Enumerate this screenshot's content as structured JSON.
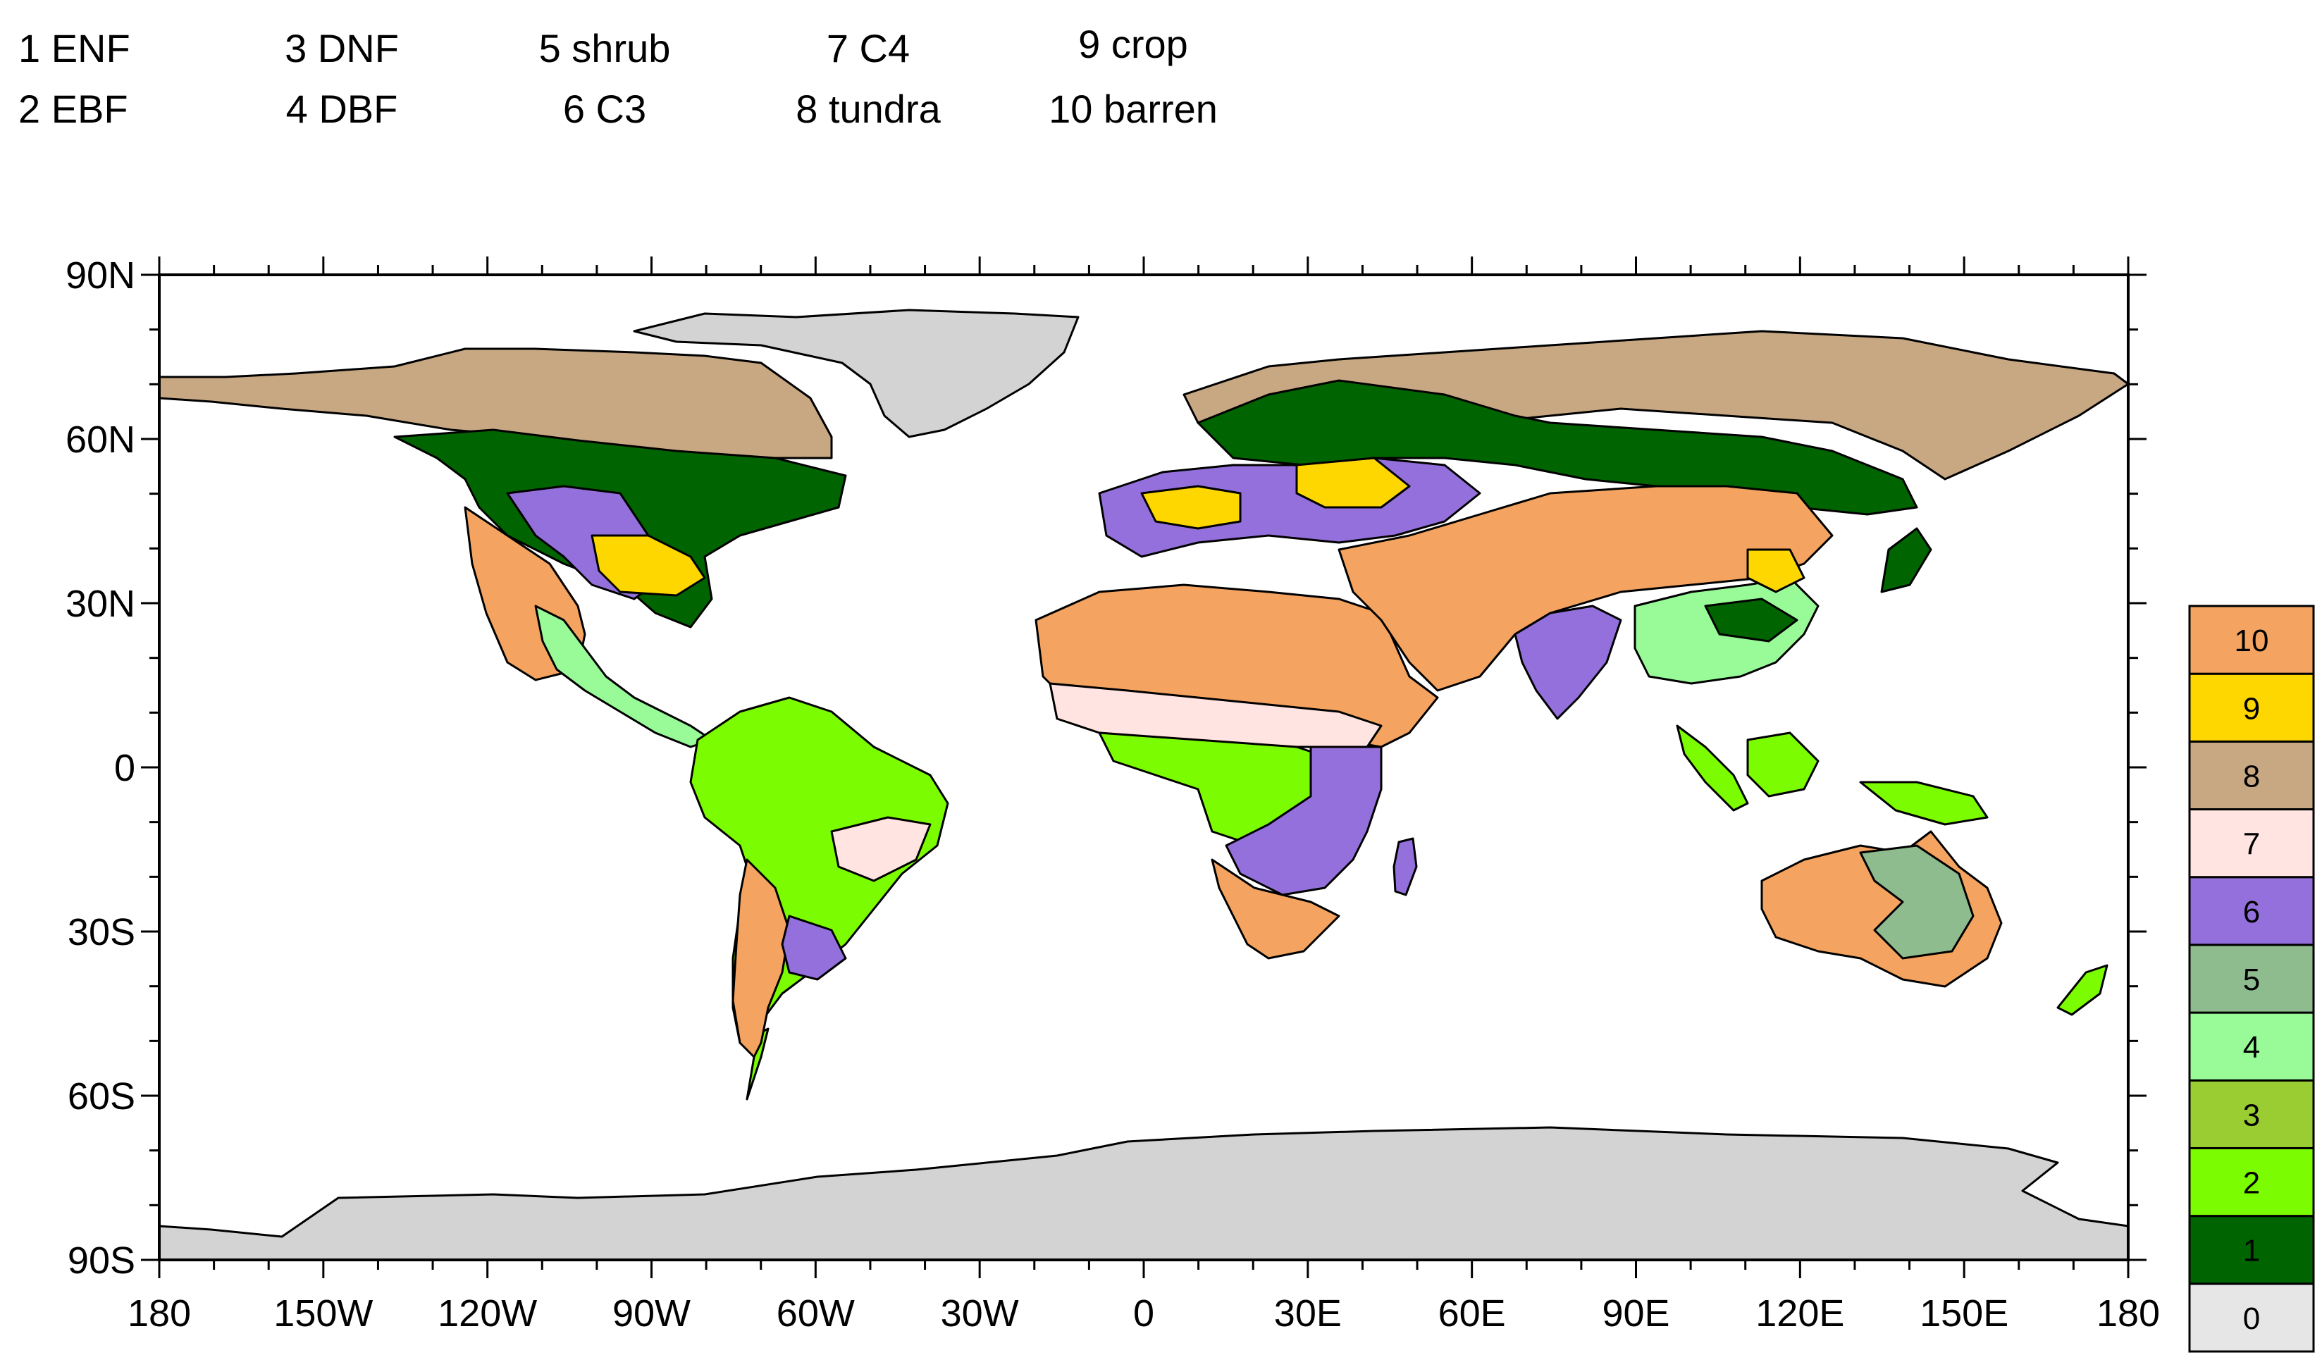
{
  "legend_top": [
    {
      "num": "1",
      "name": "ENF"
    },
    {
      "num": "2",
      "name": "EBF"
    },
    {
      "num": "3",
      "name": "DNF"
    },
    {
      "num": "4",
      "name": "DBF"
    },
    {
      "num": "5",
      "name": "shrub"
    },
    {
      "num": "6",
      "name": "C3"
    },
    {
      "num": "7",
      "name": "C4"
    },
    {
      "num": "8",
      "name": "tundra"
    },
    {
      "num": "9",
      "name": "crop"
    },
    {
      "num": "10",
      "name": "barren"
    }
  ],
  "legend_text": {
    "l1": "1 ENF",
    "l2": "2 EBF",
    "l3": "3 DNF",
    "l4": "4 DBF",
    "l5": "5 shrub",
    "l6": "6 C3",
    "l7": "7 C4",
    "l8": "8 tundra",
    "l9": "9 crop",
    "l10": "10 barren"
  },
  "y_ticks": [
    "90N",
    "60N",
    "30N",
    "0",
    "30S",
    "60S",
    "90S"
  ],
  "x_ticks": [
    "180",
    "150W",
    "120W",
    "90W",
    "60W",
    "30W",
    "0",
    "30E",
    "60E",
    "90E",
    "120E",
    "150E",
    "180"
  ],
  "colorbar": [
    {
      "label": "0",
      "color": "#e6e6e6"
    },
    {
      "label": "1",
      "color": "#006400"
    },
    {
      "label": "2",
      "color": "#7cfc00"
    },
    {
      "label": "3",
      "color": "#9acd32"
    },
    {
      "label": "4",
      "color": "#98fb98"
    },
    {
      "label": "5",
      "color": "#8fbc8f"
    },
    {
      "label": "6",
      "color": "#9370db"
    },
    {
      "label": "7",
      "color": "#ffe4e1"
    },
    {
      "label": "8",
      "color": "#c8a882"
    },
    {
      "label": "9",
      "color": "#ffd700"
    },
    {
      "label": "10",
      "color": "#f4a460"
    }
  ],
  "colors": {
    "ice": "#d3d3d3",
    "ocean": "#ffffff"
  }
}
